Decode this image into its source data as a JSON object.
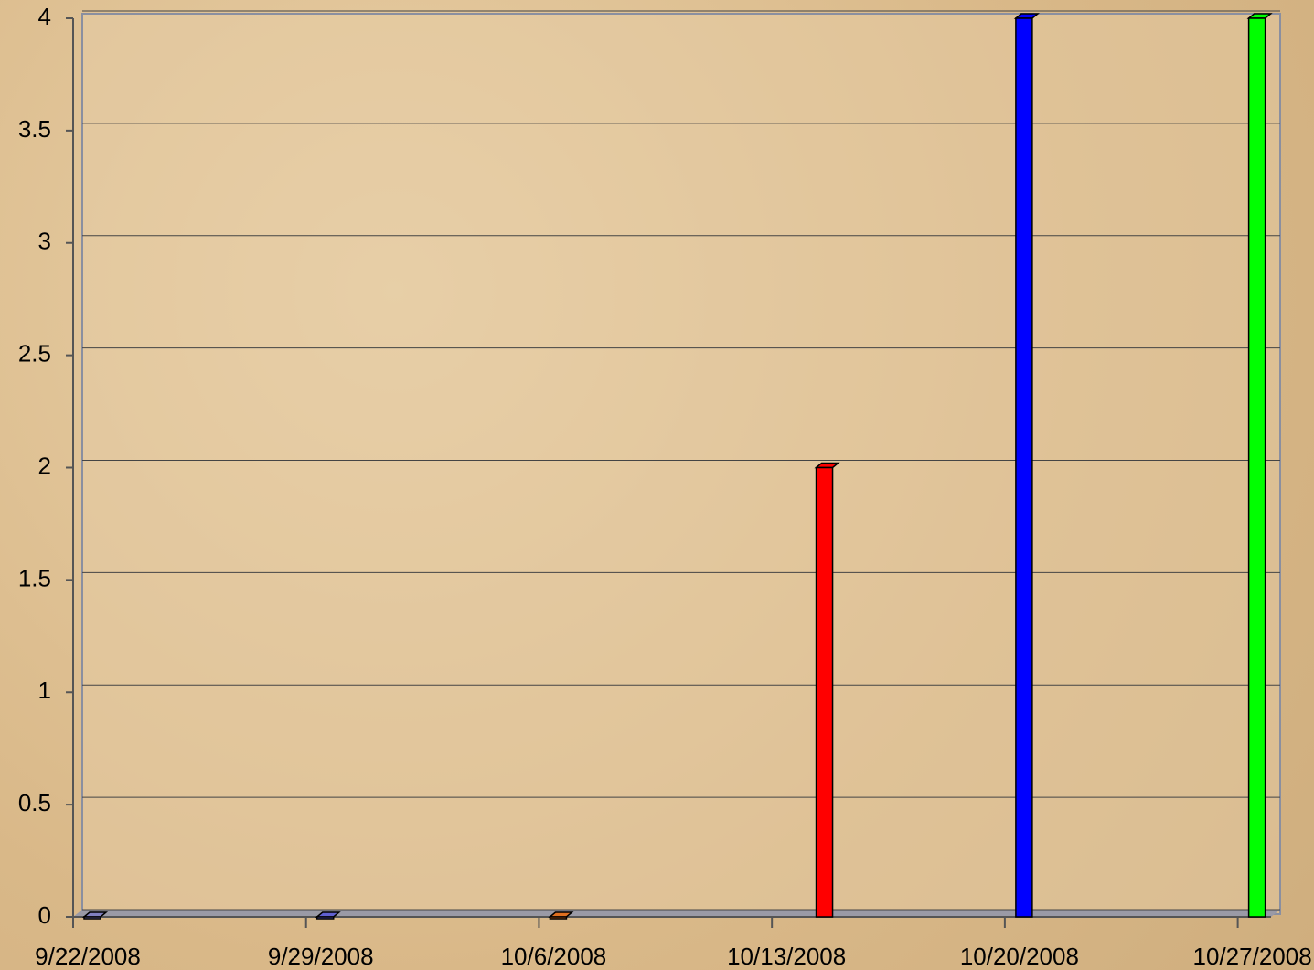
{
  "chart_data": {
    "type": "bar",
    "x": [
      "9/22/2008",
      "9/29/2008",
      "10/6/2008",
      "10/14/2008",
      "10/20/2008",
      "10/27/2008"
    ],
    "values": [
      0,
      0,
      0,
      2,
      4,
      4
    ],
    "colors": [
      "#8080c0",
      "#6060d0",
      "#e07020",
      "#ff0000",
      "#0000ff",
      "#00ff00"
    ],
    "xlim": [
      "9/22/2008",
      "10/28/2008"
    ],
    "xticks": [
      "9/22/2008",
      "9/29/2008",
      "10/6/2008",
      "10/13/2008",
      "10/20/2008",
      "10/27/2008"
    ],
    "ylim": [
      0,
      4
    ],
    "yticks": [
      0,
      0.5,
      1,
      1.5,
      2,
      2.5,
      3,
      3.5,
      4
    ],
    "grid": true
  }
}
